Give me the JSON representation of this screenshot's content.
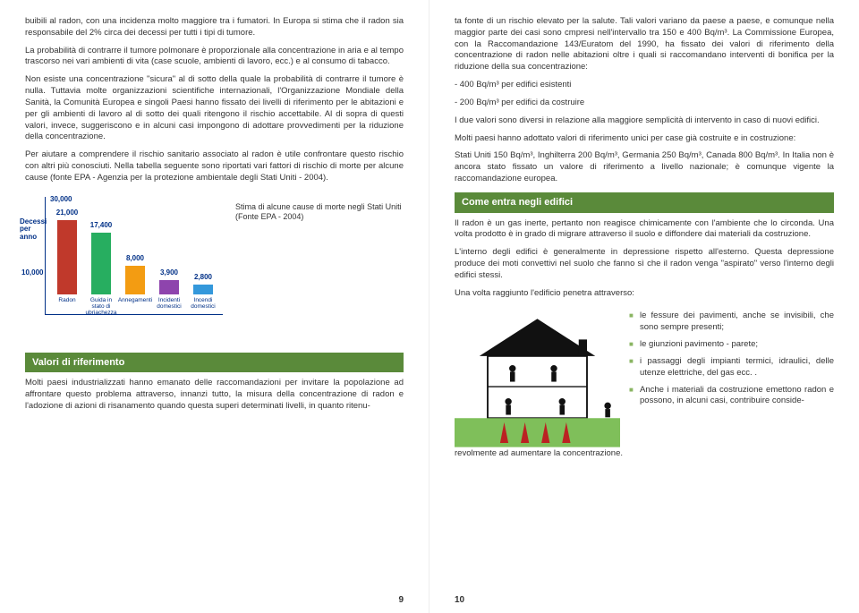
{
  "left": {
    "p1": "buibili al radon, con una incidenza molto maggiore tra i fumatori. In Europa si stima che il radon sia responsabile del 2% circa dei decessi per tutti i tipi di tumore.",
    "p2": "La probabilità di contrarre il tumore polmonare è proporzionale alla concentrazione in aria e al tempo trascorso nei vari ambienti di vita (case scuole, ambienti di lavoro, ecc.) e al consumo di tabacco.",
    "p3": "Non esiste una concentrazione \"sicura\" al di sotto della quale la probabilità di contrarre il tumore è nulla. Tuttavia molte organizzazioni scientifiche internazionali, l'Organizzazione Mondiale della Sanità, la Comunità Europea e singoli Paesi hanno fissato dei livelli di riferimento per le abitazioni e per gli ambienti di lavoro al di sotto dei quali ritengono il rischio accettabile. Al di sopra di questi valori, invece, suggeriscono e in alcuni casi impongono di adottare provvedimenti per la riduzione della concentrazione.",
    "p4": "Per aiutare a comprendere il rischio sanitario associato al radon è utile confrontare questo rischio con altri più conosciuti. Nella tabella seguente sono riportati vari fattori di rischio di morte per alcune cause (fonte EPA - Agenzia per la protezione ambientale degli Stati Uniti - 2004).",
    "chart": {
      "caption": "Stima di alcune cause di morte negli Stati Uniti\n(Fonte EPA - 2004)",
      "ylabel": "Decessi per anno",
      "max": 30000,
      "categories": [
        "Radon",
        "Guida in stato di ubriachezza",
        "Annegamenti",
        "Incidenti domestici",
        "Incendi domestici"
      ],
      "values": [
        21000,
        17400,
        8000,
        3900,
        2800
      ],
      "colors": [
        "#c0392b",
        "#27ae60",
        "#f39c12",
        "#8e44ad",
        "#3498db"
      ],
      "ytick_top": "30,000",
      "ytick_mid": "10,000"
    },
    "section_header": "Valori di riferimento",
    "p5": "Molti paesi industrializzati hanno emanato delle raccomandazioni per invitare la popolazione ad affrontare questo problema attraverso, innanzi tutto, la misura della concentrazione di radon e l'adozione di azioni di risanamento quando questa superi determinati livelli, in quanto ritenu-",
    "page_num": "9"
  },
  "right": {
    "p1": "ta fonte di un rischio elevato per la salute. Tali valori variano da paese a paese, e comunque nella maggior parte dei casi sono cmpresi nell'intervallo tra 150 e 400 Bq/m³. La Commissione Europea, con la Raccomandazione 143/Euratom del 1990, ha fissato dei valori di riferimento della concentrazione di radon nelle abitazioni oltre i quali si raccomandano interventi di bonifica per la riduzione della sua concentrazione:",
    "li1": "- 400 Bq/m³ per edifici esistenti",
    "li2": "- 200 Bq/m³ per edifici da costruire",
    "p2": "I due valori sono diversi in relazione alla maggiore semplicità di intervento in caso di nuovi edifici.",
    "p3": "Molti paesi hanno adottato valori di riferimento unici per case già costruite e in costruzione:",
    "p4": "Stati Uniti 150 Bq/m³, Inghilterra 200 Bq/m³, Germania 250 Bq/m³, Canada 800 Bq/m³. In Italia non è ancora stato fissato un valore di riferimento a livello nazionale; è comunque vigente la raccomandazione europea.",
    "section_header": "Come entra negli edifici",
    "p5": "Il radon è un gas inerte, pertanto non reagisce chimicamente con l'ambiente che lo circonda. Una volta prodotto è in grado di migrare attraverso il suolo e diffondere dai materiali da costruzione.",
    "p6": "L'interno degli edifici è generalmente in depressione rispetto all'esterno. Questa depressione produce dei moti convettivi nel suolo che fanno sì che il radon venga \"aspirato\" verso l'interno degli edifici stessi.",
    "p7": "Una volta raggiunto l'edificio penetra attraverso:",
    "bullets": {
      "b1": "le fessure dei pavimenti, anche se invisibili, che sono sempre presenti;",
      "b2": "le giunzioni pavimento - parete;",
      "b3": "i passaggi degli impianti termici, idraulici, delle utenze elettriche, del gas ecc. .",
      "b4": "Anche i materiali da costruzione emettono radon e possono, in alcuni casi, contribuire conside-"
    },
    "p8": "revolmente ad aumentare la concentrazione.",
    "page_num": "10"
  }
}
